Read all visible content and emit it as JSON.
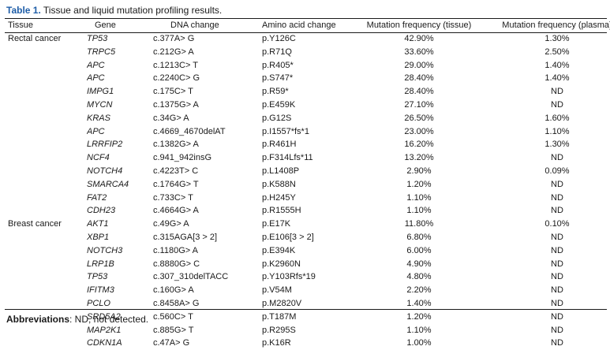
{
  "caption": {
    "label": "Table 1.",
    "text": "Tissue and liquid mutation profiling results."
  },
  "headers": {
    "tissue": "Tissue",
    "gene": "Gene",
    "dna": "DNA change",
    "aa": "Amino acid change",
    "mf_tissue": "Mutation frequency (tissue)",
    "mf_plasma": "Mutation frequency (plasma)"
  },
  "rows": [
    {
      "tissue": "Rectal cancer",
      "gene": "TP53",
      "dna": "c.377A> G",
      "aa": "p.Y126C",
      "mf_tissue": "42.90%",
      "mf_plasma": "1.30%"
    },
    {
      "tissue": "",
      "gene": "TRPC5",
      "dna": "c.212G> A",
      "aa": "p.R71Q",
      "mf_tissue": "33.60%",
      "mf_plasma": "2.50%"
    },
    {
      "tissue": "",
      "gene": "APC",
      "dna": "c.1213C> T",
      "aa": "p.R405*",
      "mf_tissue": "29.00%",
      "mf_plasma": "1.40%"
    },
    {
      "tissue": "",
      "gene": "APC",
      "dna": "c.2240C> G",
      "aa": "p.S747*",
      "mf_tissue": "28.40%",
      "mf_plasma": "1.40%"
    },
    {
      "tissue": "",
      "gene": "IMPG1",
      "dna": "c.175C> T",
      "aa": "p.R59*",
      "mf_tissue": "28.40%",
      "mf_plasma": "ND"
    },
    {
      "tissue": "",
      "gene": "MYCN",
      "dna": "c.1375G> A",
      "aa": "p.E459K",
      "mf_tissue": "27.10%",
      "mf_plasma": "ND"
    },
    {
      "tissue": "",
      "gene": "KRAS",
      "dna": "c.34G> A",
      "aa": "p.G12S",
      "mf_tissue": "26.50%",
      "mf_plasma": "1.60%"
    },
    {
      "tissue": "",
      "gene": "APC",
      "dna": "c.4669_4670delAT",
      "aa": "p.I1557*fs*1",
      "mf_tissue": "23.00%",
      "mf_plasma": "1.10%"
    },
    {
      "tissue": "",
      "gene": "LRRFIP2",
      "dna": "c.1382G> A",
      "aa": "p.R461H",
      "mf_tissue": "16.20%",
      "mf_plasma": "1.30%"
    },
    {
      "tissue": "",
      "gene": "NCF4",
      "dna": "c.941_942insG",
      "aa": "p.F314Lfs*11",
      "mf_tissue": "13.20%",
      "mf_plasma": "ND"
    },
    {
      "tissue": "",
      "gene": "NOTCH4",
      "dna": "c.4223T> C",
      "aa": "p.L1408P",
      "mf_tissue": "2.90%",
      "mf_plasma": "0.09%"
    },
    {
      "tissue": "",
      "gene": "SMARCA4",
      "dna": "c.1764G> T",
      "aa": "p.K588N",
      "mf_tissue": "1.20%",
      "mf_plasma": "ND"
    },
    {
      "tissue": "",
      "gene": "FAT2",
      "dna": "c.733C> T",
      "aa": "p.H245Y",
      "mf_tissue": "1.10%",
      "mf_plasma": "ND"
    },
    {
      "tissue": "",
      "gene": "CDH23",
      "dna": "c.4664G> A",
      "aa": "p.R1555H",
      "mf_tissue": "1.10%",
      "mf_plasma": "ND"
    },
    {
      "tissue": "Breast cancer",
      "gene": "AKT1",
      "dna": "c.49G> A",
      "aa": "p.E17K",
      "mf_tissue": "11.80%",
      "mf_plasma": "0.10%"
    },
    {
      "tissue": "",
      "gene": "XBP1",
      "dna": "c.315AGA[3 > 2]",
      "aa": "p.E106[3 > 2]",
      "mf_tissue": "6.80%",
      "mf_plasma": "ND"
    },
    {
      "tissue": "",
      "gene": "NOTCH3",
      "dna": "c.1180G> A",
      "aa": "p.E394K",
      "mf_tissue": "6.00%",
      "mf_plasma": "ND"
    },
    {
      "tissue": "",
      "gene": "LRP1B",
      "dna": "c.8880G> C",
      "aa": "p.K2960N",
      "mf_tissue": "4.90%",
      "mf_plasma": "ND"
    },
    {
      "tissue": "",
      "gene": "TP53",
      "dna": "c.307_310delTACC",
      "aa": "p.Y103Rfs*19",
      "mf_tissue": "4.80%",
      "mf_plasma": "ND"
    },
    {
      "tissue": "",
      "gene": "IFITM3",
      "dna": "c.160G> A",
      "aa": "p.V54M",
      "mf_tissue": "2.20%",
      "mf_plasma": "ND"
    },
    {
      "tissue": "",
      "gene": "PCLO",
      "dna": "c.8458A> G",
      "aa": "p.M2820V",
      "mf_tissue": "1.40%",
      "mf_plasma": "ND"
    },
    {
      "tissue": "",
      "gene": "SRD5A2",
      "dna": "c.560C> T",
      "aa": "p.T187M",
      "mf_tissue": "1.20%",
      "mf_plasma": "ND"
    },
    {
      "tissue": "",
      "gene": "MAP2K1",
      "dna": "c.885G> T",
      "aa": "p.R295S",
      "mf_tissue": "1.10%",
      "mf_plasma": "ND"
    },
    {
      "tissue": "",
      "gene": "CDKN1A",
      "dna": "c.47A> G",
      "aa": "p.K16R",
      "mf_tissue": "1.00%",
      "mf_plasma": "ND"
    }
  ],
  "footnote": {
    "label": "Abbreviations",
    "text": ": ND, not detected."
  },
  "colors": {
    "caption_label": "#1f5ea8",
    "text": "#1a1a1a"
  }
}
